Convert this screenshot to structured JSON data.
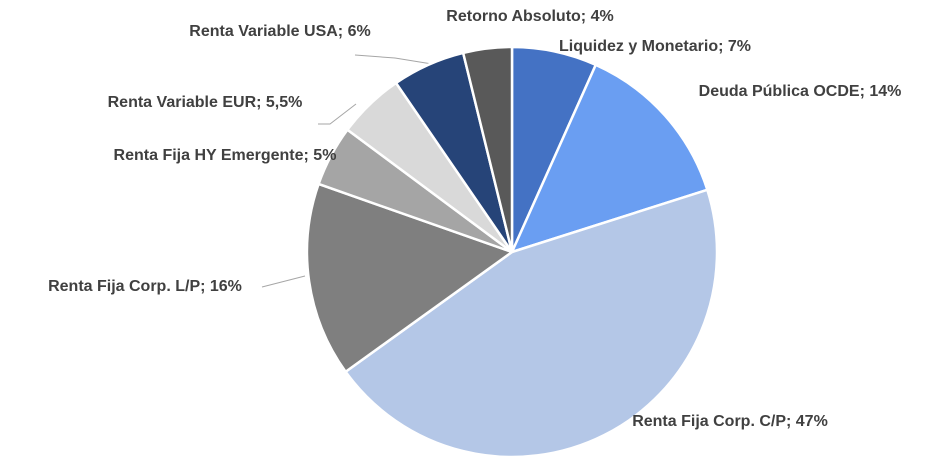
{
  "chart_data": {
    "type": "pie",
    "labels": [
      "Liquidez y Monetario; 7%",
      "Deuda Pública OCDE; 14%",
      "Renta Fija Corp. C/P; 47%",
      "Renta Fija Corp. L/P; 16%",
      "Renta Fija HY Emergente; 5%",
      "Renta Variable EUR; 5,5%",
      "Renta Variable USA; 6%",
      "Retorno Absoluto; 4%"
    ],
    "values": [
      7,
      14,
      47,
      16,
      5,
      5.5,
      6,
      4
    ],
    "colors": [
      "#4472c4",
      "#6a9ef2",
      "#b4c7e7",
      "#7f7f7f",
      "#a5a5a5",
      "#d9d9d9",
      "#264478",
      "#595959"
    ]
  }
}
